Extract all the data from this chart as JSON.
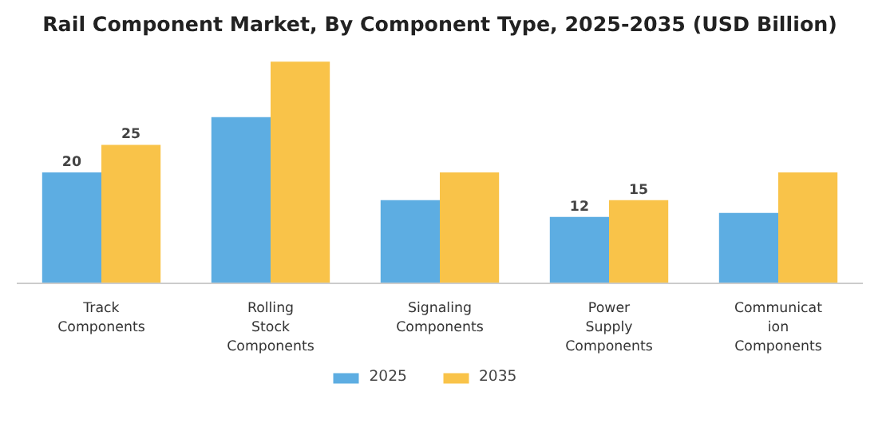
{
  "chart_data": {
    "type": "bar",
    "title": "Rail Component Market, By Component Type, 2025-2035 (USD Billion)",
    "categories": [
      "Track\nComponents",
      "Rolling\nStock\nComponents",
      "Signaling\nComponents",
      "Power\nSupply\nComponents",
      "Communicat\nion\nComponents"
    ],
    "series": [
      {
        "name": "2025",
        "color": "#5dade2",
        "values": [
          20,
          30,
          15,
          12,
          12.7
        ],
        "value_labels": [
          "20",
          null,
          null,
          "12",
          null
        ]
      },
      {
        "name": "2035",
        "color": "#f9c349",
        "values": [
          25,
          40,
          20,
          15,
          20
        ],
        "value_labels": [
          "25",
          null,
          null,
          "15",
          null
        ]
      }
    ],
    "legend": "bottom",
    "grid": false
  }
}
